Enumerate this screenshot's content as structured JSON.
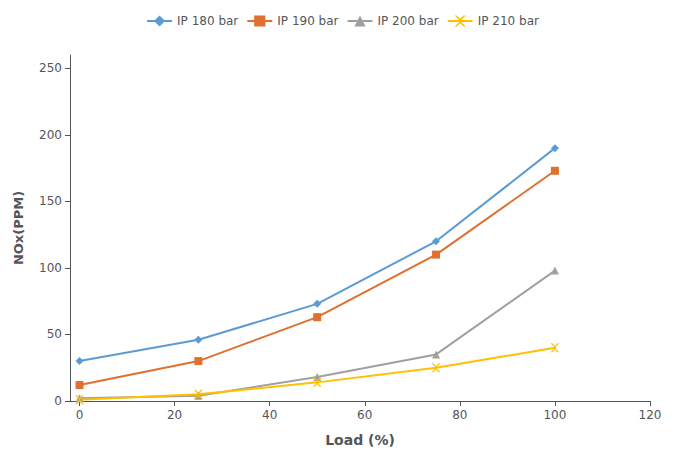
{
  "chart_data": {
    "type": "line",
    "x": [
      0,
      25,
      50,
      75,
      100
    ],
    "series": [
      {
        "name": "IP 180 bar",
        "color": "#5B9BD5",
        "marker": "diamond",
        "values": [
          30,
          46,
          73,
          120,
          190
        ]
      },
      {
        "name": "IP 190 bar",
        "color": "#E07030",
        "marker": "square",
        "values": [
          12,
          30,
          63,
          110,
          173
        ]
      },
      {
        "name": "IP 200 bar",
        "color": "#A0A0A0",
        "marker": "triangle",
        "values": [
          2,
          4,
          18,
          35,
          98
        ]
      },
      {
        "name": "IP 210 bar",
        "color": "#FFC000",
        "marker": "x",
        "values": [
          1,
          5,
          14,
          25,
          40
        ]
      }
    ],
    "xlabel": "Load (%)",
    "ylabel": "NOx(PPM)",
    "xlim": [
      -2,
      120
    ],
    "ylim": [
      0,
      260
    ],
    "xticks": [
      0,
      20,
      40,
      60,
      80,
      100,
      120
    ],
    "yticks": [
      0,
      50,
      100,
      150,
      200,
      250
    ],
    "grid": false,
    "legend": "top"
  }
}
